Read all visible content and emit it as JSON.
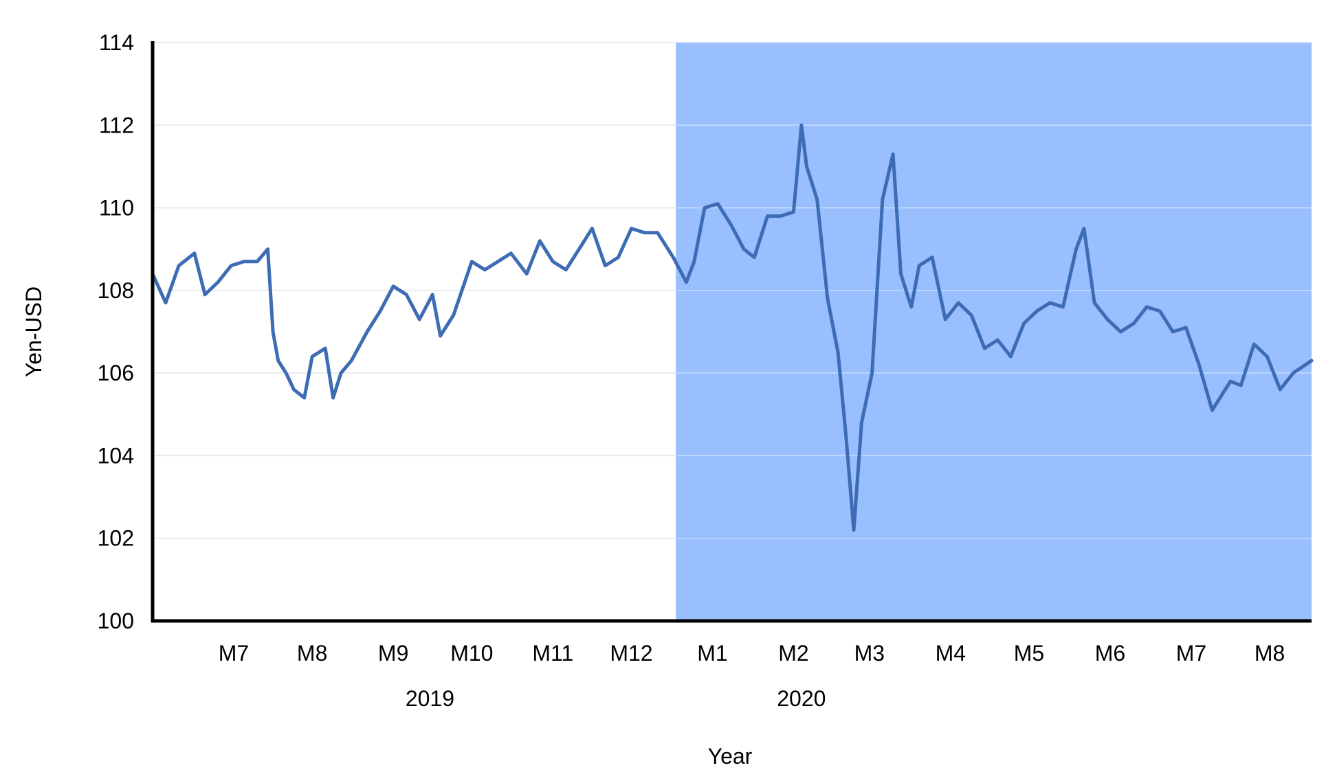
{
  "chart_data": {
    "type": "line",
    "xlabel": "Year",
    "ylabel": "Yen-USD",
    "ylim": [
      100,
      114
    ],
    "yticks": [
      100,
      102,
      104,
      106,
      108,
      110,
      112,
      114
    ],
    "x_range": [
      "2019-06-15",
      "2020-08-31"
    ],
    "month_ticks": [
      {
        "label": "M7",
        "date": "2019-07-16"
      },
      {
        "label": "M8",
        "date": "2019-08-15"
      },
      {
        "label": "M9",
        "date": "2019-09-15"
      },
      {
        "label": "M10",
        "date": "2019-10-15"
      },
      {
        "label": "M11",
        "date": "2019-11-15"
      },
      {
        "label": "M12",
        "date": "2019-12-15"
      },
      {
        "label": "M1",
        "date": "2020-01-15"
      },
      {
        "label": "M2",
        "date": "2020-02-15"
      },
      {
        "label": "M3",
        "date": "2020-03-15"
      },
      {
        "label": "M4",
        "date": "2020-04-15"
      },
      {
        "label": "M5",
        "date": "2020-05-15"
      },
      {
        "label": "M6",
        "date": "2020-06-15"
      },
      {
        "label": "M7",
        "date": "2020-07-16"
      },
      {
        "label": "M8",
        "date": "2020-08-15"
      }
    ],
    "year_labels": [
      {
        "label": "2019",
        "date": "2019-09-29"
      },
      {
        "label": "2020",
        "date": "2020-02-18"
      }
    ],
    "shaded_region": {
      "start": "2020-01-01",
      "end": "2020-08-31",
      "color": "#99bfff"
    },
    "series": [
      {
        "color": "#3d6cb5",
        "x": [
          "2019-06-15",
          "2019-06-20",
          "2019-06-25",
          "2019-07-01",
          "2019-07-05",
          "2019-07-10",
          "2019-07-15",
          "2019-07-20",
          "2019-07-25",
          "2019-07-29",
          "2019-07-31",
          "2019-08-02",
          "2019-08-05",
          "2019-08-08",
          "2019-08-12",
          "2019-08-15",
          "2019-08-20",
          "2019-08-23",
          "2019-08-26",
          "2019-08-30",
          "2019-09-05",
          "2019-09-10",
          "2019-09-15",
          "2019-09-20",
          "2019-09-25",
          "2019-09-30",
          "2019-10-03",
          "2019-10-08",
          "2019-10-15",
          "2019-10-20",
          "2019-10-25",
          "2019-10-30",
          "2019-11-05",
          "2019-11-10",
          "2019-11-15",
          "2019-11-20",
          "2019-11-25",
          "2019-11-30",
          "2019-12-05",
          "2019-12-10",
          "2019-12-15",
          "2019-12-20",
          "2019-12-25",
          "2019-12-31",
          "2020-01-05",
          "2020-01-08",
          "2020-01-12",
          "2020-01-17",
          "2020-01-22",
          "2020-01-27",
          "2020-01-31",
          "2020-02-05",
          "2020-02-10",
          "2020-02-15",
          "2020-02-18",
          "2020-02-20",
          "2020-02-24",
          "2020-02-28",
          "2020-03-03",
          "2020-03-06",
          "2020-03-09",
          "2020-03-12",
          "2020-03-16",
          "2020-03-20",
          "2020-03-24",
          "2020-03-27",
          "2020-03-31",
          "2020-04-03",
          "2020-04-08",
          "2020-04-13",
          "2020-04-18",
          "2020-04-23",
          "2020-04-28",
          "2020-05-03",
          "2020-05-08",
          "2020-05-13",
          "2020-05-18",
          "2020-05-23",
          "2020-05-28",
          "2020-06-02",
          "2020-06-05",
          "2020-06-09",
          "2020-06-14",
          "2020-06-19",
          "2020-06-24",
          "2020-06-29",
          "2020-07-04",
          "2020-07-09",
          "2020-07-14",
          "2020-07-19",
          "2020-07-24",
          "2020-07-28",
          "2020-07-31",
          "2020-08-04",
          "2020-08-09",
          "2020-08-14",
          "2020-08-19",
          "2020-08-24",
          "2020-08-31"
        ],
        "y": [
          108.4,
          107.7,
          108.6,
          108.9,
          107.9,
          108.2,
          108.6,
          108.7,
          108.7,
          109.0,
          107.0,
          106.3,
          106.0,
          105.6,
          105.4,
          106.4,
          106.6,
          105.4,
          106.0,
          106.3,
          107.0,
          107.5,
          108.1,
          107.9,
          107.3,
          107.9,
          106.9,
          107.4,
          108.7,
          108.5,
          108.7,
          108.9,
          108.4,
          109.2,
          108.7,
          108.5,
          109.0,
          109.5,
          108.6,
          108.8,
          109.5,
          109.4,
          109.4,
          108.8,
          108.2,
          108.7,
          110.0,
          110.1,
          109.6,
          109.0,
          108.8,
          109.8,
          109.8,
          109.9,
          112.0,
          111.0,
          110.2,
          107.8,
          106.5,
          104.5,
          102.2,
          104.8,
          106.0,
          110.2,
          111.3,
          108.4,
          107.6,
          108.6,
          108.8,
          107.3,
          107.7,
          107.4,
          106.6,
          106.8,
          106.4,
          107.2,
          107.5,
          107.7,
          107.6,
          109.0,
          109.5,
          107.7,
          107.3,
          107.0,
          107.2,
          107.6,
          107.5,
          107.0,
          107.1,
          106.2,
          105.1,
          105.5,
          105.8,
          105.7,
          106.7,
          106.4,
          105.6,
          106.0,
          106.3
        ]
      }
    ]
  }
}
